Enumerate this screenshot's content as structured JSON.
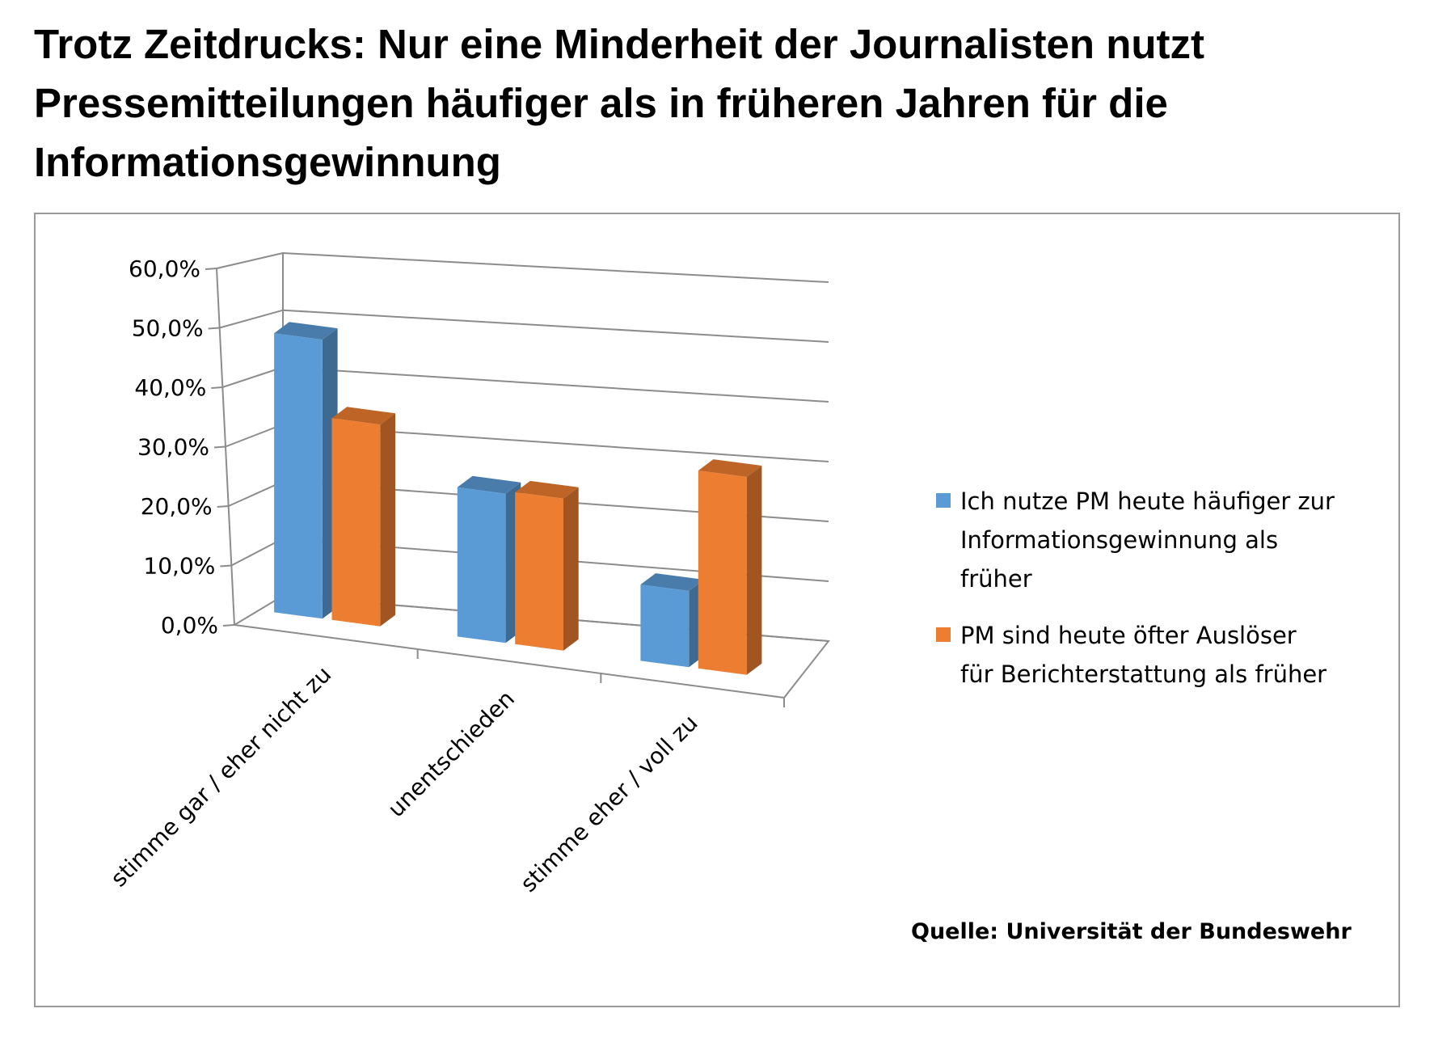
{
  "title": {
    "line1": "Trotz Zeitdrucks: Nur eine Minderheit der Journalisten nutzt",
    "line2": "Pressemitteilungen häufiger als in früheren Jahren für die",
    "line3": "Informationsgewinnung"
  },
  "source": "Quelle:  Universität der Bundeswehr",
  "chart_data": {
    "type": "bar",
    "style": "3d-clustered-column",
    "categories": [
      "stimme gar / eher nicht zu",
      "unentschieden",
      "stimme eher / voll zu"
    ],
    "series": [
      {
        "name": "Ich nutze PM heute häufiger zur Informationsgewinnung als früher",
        "legend_lines": [
          "Ich nutze PM heute häufiger zur",
          "Informationsgewinnung als",
          "früher"
        ],
        "color": "#5b9bd5",
        "values": [
          50.5,
          27.0,
          13.8
        ]
      },
      {
        "name": "PM sind heute öfter Auslöser für Berichterstattung als früher",
        "legend_lines": [
          "PM sind heute öfter Auslöser",
          "für Berichterstattung als früher"
        ],
        "color": "#ed7d31",
        "values": [
          36.5,
          27.5,
          35.8
        ]
      }
    ],
    "yticks": [
      "0,0%",
      "10,0%",
      "20,0%",
      "30,0%",
      "40,0%",
      "50,0%",
      "60,0%"
    ],
    "ylim": [
      0,
      60
    ],
    "grid": true,
    "legend_position": "right"
  }
}
